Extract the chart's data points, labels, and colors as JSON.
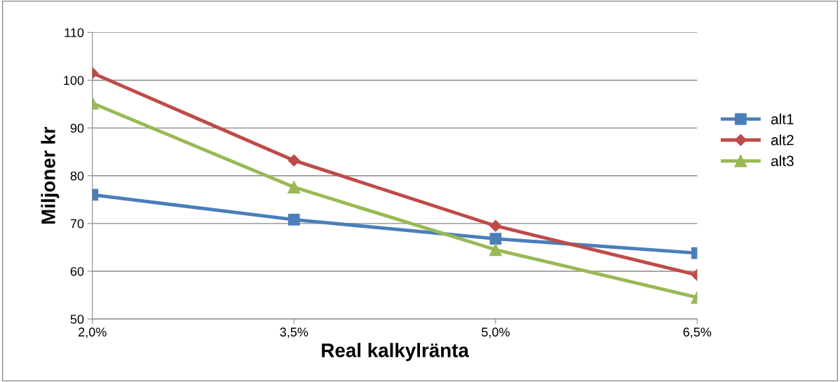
{
  "chart_data": {
    "type": "line",
    "xlabel": "Real kalkylränta",
    "ylabel": "Miljoner kr",
    "categories": [
      "2,0%",
      "3,5%",
      "5,0%",
      "6,5%"
    ],
    "series": [
      {
        "name": "alt1",
        "color": "#4a7ebb",
        "marker": "square",
        "values": [
          76,
          70.8,
          66.8,
          63.8
        ]
      },
      {
        "name": "alt2",
        "color": "#be4b48",
        "marker": "diamond",
        "values": [
          101.5,
          83.2,
          69.5,
          59.2
        ]
      },
      {
        "name": "alt3",
        "color": "#98b954",
        "marker": "triangle",
        "values": [
          95.2,
          77.6,
          64.5,
          54.5
        ]
      }
    ],
    "ylim": [
      50,
      110
    ],
    "yticks": [
      50,
      60,
      70,
      80,
      90,
      100,
      110
    ],
    "grid": "y",
    "legend": "right",
    "line_style": "solid"
  }
}
